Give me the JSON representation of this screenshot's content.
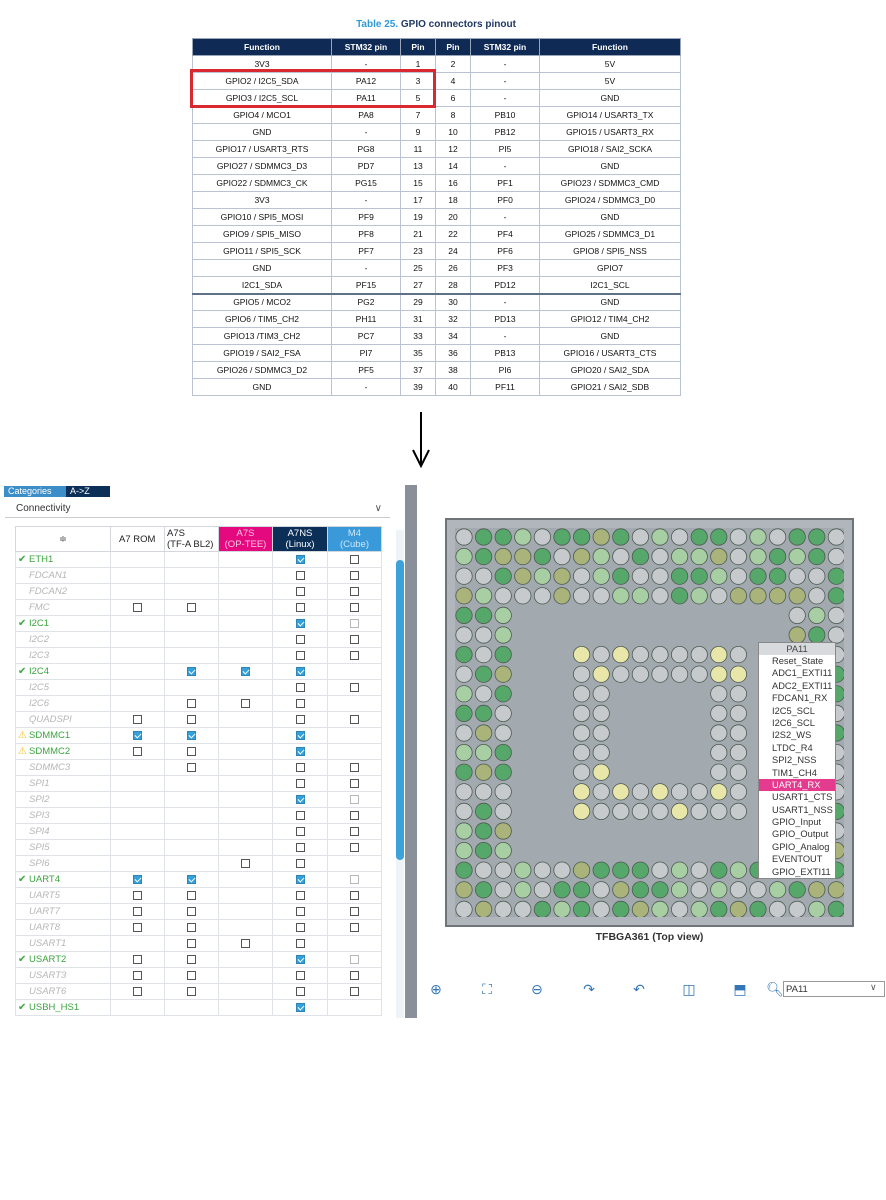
{
  "table_title": {
    "number": "Table 25.",
    "text": " GPIO connectors pinout"
  },
  "pinout": {
    "headers": [
      "Function",
      "STM32 pin",
      "Pin",
      "Pin",
      "STM32 pin",
      "Function"
    ],
    "rows": [
      [
        "3V3",
        "-",
        "1",
        "2",
        "-",
        "5V"
      ],
      [
        "GPIO2 / I2C5_SDA",
        "PA12",
        "3",
        "4",
        "-",
        "5V"
      ],
      [
        "GPIO3 / I2C5_SCL",
        "PA11",
        "5",
        "6",
        "-",
        "GND"
      ],
      [
        "GPIO4 / MCO1",
        "PA8",
        "7",
        "8",
        "PB10",
        "GPIO14 / USART3_TX"
      ],
      [
        "GND",
        "-",
        "9",
        "10",
        "PB12",
        "GPIO15 / USART3_RX"
      ],
      [
        "GPIO17 / USART3_RTS",
        "PG8",
        "11",
        "12",
        "PI5",
        "GPIO18 / SAI2_SCKA"
      ],
      [
        "GPIO27 / SDMMC3_D3",
        "PD7",
        "13",
        "14",
        "-",
        "GND"
      ],
      [
        "GPIO22 / SDMMC3_CK",
        "PG15",
        "15",
        "16",
        "PF1",
        "GPIO23 / SDMMC3_CMD"
      ],
      [
        "3V3",
        "-",
        "17",
        "18",
        "PF0",
        "GPIO24 / SDMMC3_D0"
      ],
      [
        "GPIO10 / SPI5_MOSI",
        "PF9",
        "19",
        "20",
        "-",
        "GND"
      ],
      [
        "GPIO9 / SPI5_MISO",
        "PF8",
        "21",
        "22",
        "PF4",
        "GPIO25 / SDMMC3_D1"
      ],
      [
        "GPIO11 / SPI5_SCK",
        "PF7",
        "23",
        "24",
        "PF6",
        "GPIO8 / SPI5_NSS"
      ],
      [
        "GND",
        "-",
        "25",
        "26",
        "PF3",
        "GPIO7"
      ],
      [
        "I2C1_SDA",
        "PF15",
        "27",
        "28",
        "PD12",
        "I2C1_SCL"
      ],
      [
        "GPIO5 / MCO2",
        "PG2",
        "29",
        "30",
        "-",
        "GND"
      ],
      [
        "GPIO6 / TIM5_CH2",
        "PH11",
        "31",
        "32",
        "PD13",
        "GPIO12 / TIM4_CH2"
      ],
      [
        "GPIO13 /TIM3_CH2",
        "PC7",
        "33",
        "34",
        "-",
        "GND"
      ],
      [
        "GPIO19 / SAI2_FSA",
        "PI7",
        "35",
        "36",
        "PB13",
        "GPIO16 / USART3_CTS"
      ],
      [
        "GPIO26 / SDMMC3_D2",
        "PF5",
        "37",
        "38",
        "PI6",
        "GPIO20 / SAI2_SDA"
      ],
      [
        "GND",
        "-",
        "39",
        "40",
        "PF11",
        "GPIO21 / SAI2_SDB"
      ]
    ]
  },
  "tabs": {
    "categories": "Categories",
    "az": "A->Z"
  },
  "category": "Connectivity",
  "columns": {
    "sort": "≑",
    "a7rom": "A7 ROM",
    "a7s_1": "A7S",
    "a7s_2": "(TF-A BL2)",
    "a7s_tee_1": "A7S",
    "a7s_tee_2": "(OP-TEE)",
    "a7ns_1": "A7NS",
    "a7ns_2": "(Linux)",
    "m4_1": "M4",
    "m4_2": "(Cube)"
  },
  "peripherals": [
    {
      "name": "ETH1",
      "status": "ok",
      "c": [
        "",
        "",
        "",
        "on",
        "off"
      ]
    },
    {
      "name": "FDCAN1",
      "status": "dis",
      "c": [
        "",
        "",
        "",
        "off",
        "off"
      ]
    },
    {
      "name": "FDCAN2",
      "status": "dis",
      "c": [
        "",
        "",
        "",
        "off",
        "off"
      ]
    },
    {
      "name": "FMC",
      "status": "dis",
      "c": [
        "off",
        "off",
        "",
        "off",
        "off"
      ]
    },
    {
      "name": "I2C1",
      "status": "ok",
      "c": [
        "",
        "",
        "",
        "on",
        "dis"
      ]
    },
    {
      "name": "I2C2",
      "status": "dis",
      "c": [
        "",
        "",
        "",
        "off",
        "off"
      ]
    },
    {
      "name": "I2C3",
      "status": "dis",
      "c": [
        "",
        "",
        "",
        "off",
        "off"
      ]
    },
    {
      "name": "I2C4",
      "status": "ok",
      "c": [
        "",
        "on",
        "on",
        "on",
        ""
      ]
    },
    {
      "name": "I2C5",
      "status": "dis",
      "c": [
        "",
        "",
        "",
        "off",
        "off"
      ]
    },
    {
      "name": "I2C6",
      "status": "dis",
      "c": [
        "",
        "off",
        "off",
        "off",
        ""
      ]
    },
    {
      "name": "QUADSPI",
      "status": "dis",
      "c": [
        "off",
        "off",
        "",
        "off",
        "off"
      ]
    },
    {
      "name": "SDMMC1",
      "status": "warn",
      "c": [
        "on",
        "on",
        "",
        "on",
        ""
      ]
    },
    {
      "name": "SDMMC2",
      "status": "warn",
      "c": [
        "off",
        "off",
        "",
        "on",
        ""
      ]
    },
    {
      "name": "SDMMC3",
      "status": "dis",
      "c": [
        "",
        "off",
        "",
        "off",
        "off"
      ]
    },
    {
      "name": "SPI1",
      "status": "dis",
      "c": [
        "",
        "",
        "",
        "off",
        "off"
      ]
    },
    {
      "name": "SPI2",
      "status": "dis",
      "c": [
        "",
        "",
        "",
        "on",
        "dis"
      ]
    },
    {
      "name": "SPI3",
      "status": "dis",
      "c": [
        "",
        "",
        "",
        "off",
        "off"
      ]
    },
    {
      "name": "SPI4",
      "status": "dis",
      "c": [
        "",
        "",
        "",
        "off",
        "off"
      ]
    },
    {
      "name": "SPI5",
      "status": "dis",
      "c": [
        "",
        "",
        "",
        "off",
        "off"
      ]
    },
    {
      "name": "SPI6",
      "status": "dis",
      "c": [
        "",
        "",
        "off",
        "off",
        ""
      ]
    },
    {
      "name": "UART4",
      "status": "ok",
      "c": [
        "on",
        "on",
        "",
        "on",
        "dis"
      ]
    },
    {
      "name": "UART5",
      "status": "dis",
      "c": [
        "off",
        "off",
        "",
        "off",
        "off"
      ]
    },
    {
      "name": "UART7",
      "status": "dis",
      "c": [
        "off",
        "off",
        "",
        "off",
        "off"
      ]
    },
    {
      "name": "UART8",
      "status": "dis",
      "c": [
        "off",
        "off",
        "",
        "off",
        "off"
      ]
    },
    {
      "name": "USART1",
      "status": "dis",
      "c": [
        "",
        "off",
        "off",
        "off",
        ""
      ]
    },
    {
      "name": "USART2",
      "status": "ok",
      "c": [
        "off",
        "off",
        "",
        "on",
        "dis"
      ]
    },
    {
      "name": "USART3",
      "status": "dis",
      "c": [
        "off",
        "off",
        "",
        "off",
        "off"
      ]
    },
    {
      "name": "USART6",
      "status": "dis",
      "c": [
        "off",
        "off",
        "",
        "off",
        "off"
      ]
    },
    {
      "name": "USBH_HS1",
      "status": "ok",
      "c": [
        "",
        "",
        "",
        "on",
        ""
      ]
    }
  ],
  "chip": {
    "caption": "TFBGA361 (Top view)",
    "menu_title": "PA11",
    "menu_items": [
      "Reset_State",
      "ADC1_EXTI11",
      "ADC2_EXTI11",
      "FDCAN1_RX",
      "I2C5_SCL",
      "I2C6_SCL",
      "I2S2_WS",
      "LTDC_R4",
      "SPI2_NSS",
      "TIM1_CH4",
      "UART4_RX",
      "USART1_CTS",
      "USART1_NSS",
      "GPIO_Input",
      "GPIO_Output",
      "GPIO_Analog",
      "EVENTOUT",
      "GPIO_EXTI11"
    ],
    "menu_selected": "UART4_RX"
  },
  "search": {
    "value": "PA11"
  },
  "colors": {
    "pin_green": "#56a86a",
    "pin_light_green": "#a8cfa3",
    "pin_gray": "#c6cacd",
    "pin_olive": "#a9b37a",
    "pin_yellow": "#e8e6a8",
    "select_pink": "#e43b8f"
  }
}
